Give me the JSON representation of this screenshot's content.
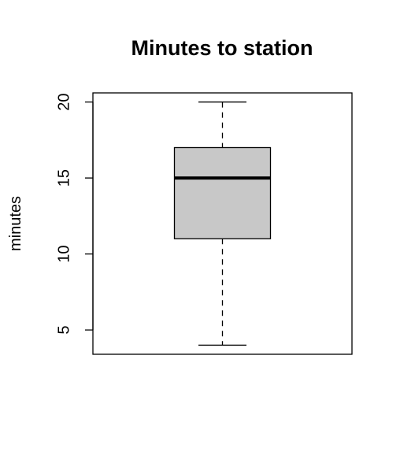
{
  "chart_data": {
    "type": "boxplot",
    "title": "Minutes to station",
    "xlabel": "",
    "ylabel": "minutes",
    "ylim": [
      3.4,
      20.6
    ],
    "y_ticks": [
      5,
      10,
      15,
      20
    ],
    "grid": false,
    "series": [
      {
        "min": 4,
        "q1": 11,
        "median": 15,
        "q3": 17,
        "max": 20
      }
    ],
    "colors": {
      "box_fill": "#c8c8c8",
      "stroke": "#000000"
    }
  }
}
